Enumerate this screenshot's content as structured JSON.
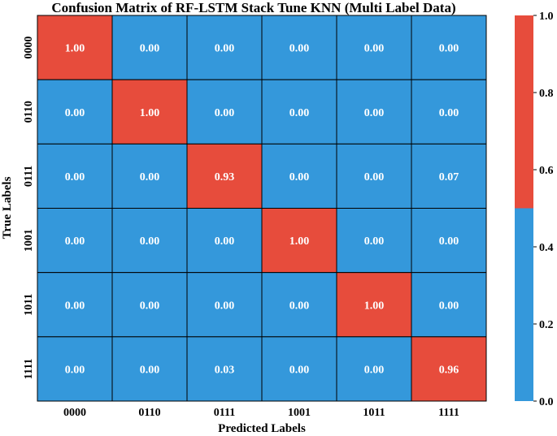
{
  "chart_data": {
    "type": "heatmap",
    "title": "Confusion Matrix of RF-LSTM Stack Tune KNN (Multi Label Data)",
    "xlabel": "Predicted Labels",
    "ylabel": "True Labels",
    "x_categories": [
      "0000",
      "0110",
      "0111",
      "1001",
      "1011",
      "1111"
    ],
    "y_categories": [
      "0000",
      "0110",
      "0111",
      "1001",
      "1011",
      "1111"
    ],
    "values": [
      [
        1.0,
        0.0,
        0.0,
        0.0,
        0.0,
        0.0
      ],
      [
        0.0,
        1.0,
        0.0,
        0.0,
        0.0,
        0.0
      ],
      [
        0.0,
        0.0,
        0.93,
        0.0,
        0.0,
        0.07
      ],
      [
        0.0,
        0.0,
        0.0,
        1.0,
        0.0,
        0.0
      ],
      [
        0.0,
        0.0,
        0.0,
        0.0,
        1.0,
        0.0
      ],
      [
        0.0,
        0.0,
        0.03,
        0.0,
        0.0,
        0.96
      ]
    ],
    "value_labels": [
      [
        "1.00",
        "0.00",
        "0.00",
        "0.00",
        "0.00",
        "0.00"
      ],
      [
        "0.00",
        "1.00",
        "0.00",
        "0.00",
        "0.00",
        "0.00"
      ],
      [
        "0.00",
        "0.00",
        "0.93",
        "0.00",
        "0.00",
        "0.07"
      ],
      [
        "0.00",
        "0.00",
        "0.00",
        "1.00",
        "0.00",
        "0.00"
      ],
      [
        "0.00",
        "0.00",
        "0.00",
        "0.00",
        "1.00",
        "0.00"
      ],
      [
        "0.00",
        "0.00",
        "0.03",
        "0.00",
        "0.00",
        "0.96"
      ]
    ],
    "colorscale": {
      "colors": [
        "#3498db",
        "#e74c3c"
      ],
      "threshold": 0.5,
      "range": [
        0,
        1
      ],
      "ticks": [
        "0.0",
        "0.2",
        "0.4",
        "0.6",
        "0.8",
        "1.0"
      ]
    }
  }
}
